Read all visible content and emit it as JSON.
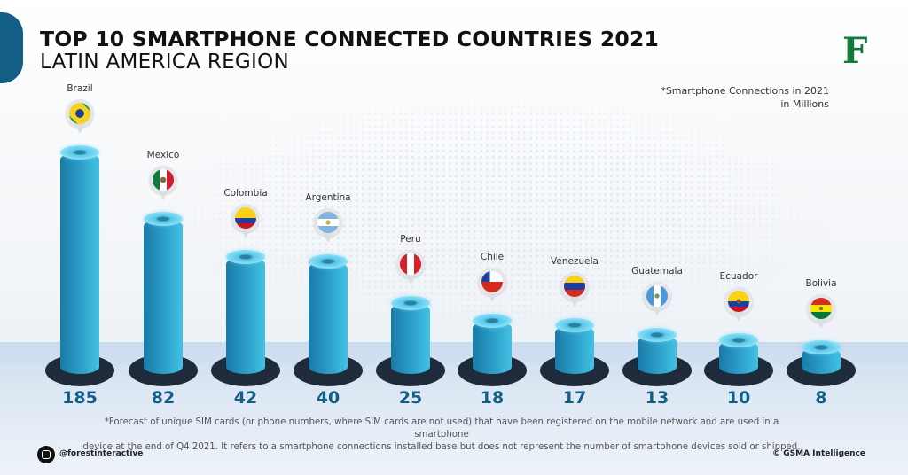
{
  "header": {
    "title": "TOP 10 SMARTPHONE CONNECTED COUNTRIES 2021",
    "subtitle": "LATIN AMERICA REGION",
    "logo": "F",
    "note_line1": "*Smartphone Connections in 2021",
    "note_line2": "in Millions"
  },
  "colors": {
    "accent": "#125e85",
    "bar": "#2898c4",
    "base": "#1f2b3a",
    "logo": "#127a3a"
  },
  "chart_data": {
    "type": "bar",
    "title": "TOP 10 SMARTPHONE CONNECTED COUNTRIES 2021 - LATIN AMERICA REGION",
    "xlabel": "",
    "ylabel": "Smartphone Connections in 2021 (Millions)",
    "categories": [
      "Brazil",
      "Mexico",
      "Colombia",
      "Argentina",
      "Peru",
      "Chile",
      "Venezuela",
      "Guatemala",
      "Ecuador",
      "Bolivia"
    ],
    "values": [
      185,
      82,
      42,
      40,
      25,
      18,
      17,
      13,
      10,
      8
    ],
    "grid": false,
    "legend": "none"
  },
  "countries": [
    {
      "name": "Brazil",
      "value": "185",
      "flag": "brazil-flag"
    },
    {
      "name": "Mexico",
      "value": "82",
      "flag": "mexico-flag"
    },
    {
      "name": "Colombia",
      "value": "42",
      "flag": "colombia-flag"
    },
    {
      "name": "Argentina",
      "value": "40",
      "flag": "argentina-flag"
    },
    {
      "name": "Peru",
      "value": "25",
      "flag": "peru-flag"
    },
    {
      "name": "Chile",
      "value": "18",
      "flag": "chile-flag"
    },
    {
      "name": "Venezuela",
      "value": "17",
      "flag": "venezuela-flag"
    },
    {
      "name": "Guatemala",
      "value": "13",
      "flag": "guatemala-flag"
    },
    {
      "name": "Ecuador",
      "value": "10",
      "flag": "ecuador-flag"
    },
    {
      "name": "Bolivia",
      "value": "8",
      "flag": "bolivia-flag"
    }
  ],
  "footer": {
    "note_line1": "*Forecast of unique SIM cards (or phone numbers, where SIM cards are not used) that have been registered on the mobile network and are used in a smartphone",
    "note_line2": "device at the end of Q4 2021. It refers to a smartphone connections installed base but does not represent the number of smartphone devices sold or shipped.",
    "instagram_handle": "@forestinteractive",
    "credit": "© GSMA Intelligence"
  }
}
